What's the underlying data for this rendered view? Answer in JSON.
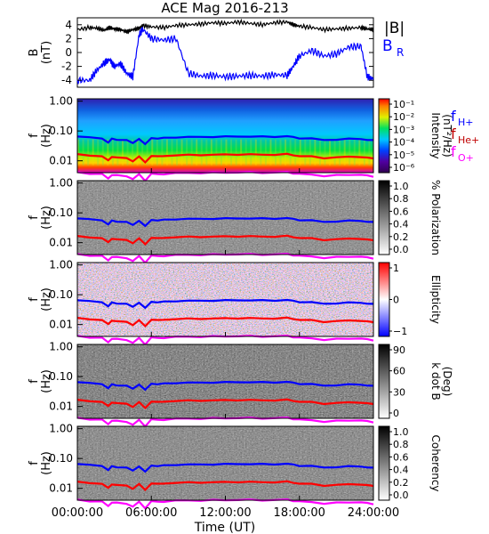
{
  "title": "ACE Mag 2016-213",
  "xlabel": "Time (UT)",
  "time_ticks": [
    "00:00:00",
    "06:00:00",
    "12:00:00",
    "18:00:00",
    "24:00:00"
  ],
  "colors": {
    "black": "#000000",
    "blue": "#0000ff",
    "red": "#ff0000",
    "magenta": "#ff00ff",
    "purple": "#8000a0"
  },
  "chart_data": [
    {
      "type": "line",
      "panel": "B",
      "ylabel": [
        "B",
        "(nT)"
      ],
      "ylim": [
        -5,
        5
      ],
      "yticks": [
        -4,
        -2,
        0,
        2,
        4
      ],
      "legend": {
        "labels": [
          "|B|",
          "B",
          "R"
        ],
        "placement": "right"
      },
      "x_hours": [
        0,
        1,
        1.6,
        2.2,
        2.6,
        3,
        3.5,
        4,
        4.5,
        5,
        5.3,
        6,
        7,
        8,
        9,
        10,
        11,
        12,
        13,
        14,
        15,
        16,
        17,
        17.5,
        18,
        19,
        20,
        21,
        22,
        23,
        23.5,
        24
      ],
      "series": [
        {
          "name": "|B|",
          "color": "#000000",
          "values": [
            3.3,
            3.6,
            3.5,
            3.2,
            3.6,
            3.4,
            3.3,
            3.0,
            3.3,
            3.5,
            3.9,
            3.7,
            3.6,
            3.9,
            4.0,
            4.1,
            4.3,
            4.2,
            4.4,
            4.2,
            4.0,
            4.3,
            4.4,
            4.0,
            3.8,
            3.6,
            3.3,
            3.4,
            3.5,
            3.6,
            3.4,
            3.3
          ]
        },
        {
          "name": "BR",
          "color": "#0000ff",
          "values": [
            -4.0,
            -4.0,
            -2.5,
            -1.5,
            -1.0,
            -2.0,
            -1.6,
            -3.0,
            -3.5,
            2.5,
            3.4,
            2.0,
            1.8,
            2.0,
            -3.0,
            -3.4,
            -3.3,
            -3.5,
            -3.4,
            -3.3,
            -3.4,
            -3.2,
            -3.3,
            -2.0,
            -0.5,
            0.3,
            -0.5,
            -0.2,
            0.8,
            0.9,
            -3.5,
            -3.8
          ]
        }
      ]
    },
    {
      "type": "heatmap",
      "panel": "intensity",
      "ylabel": [
        "f",
        "(Hz)"
      ],
      "yticks": [
        "0.01",
        "0.10",
        "1.00"
      ],
      "ylim": [
        0.004,
        1.2
      ],
      "colorbar": {
        "labels": [
          "10⁻¹",
          "10⁻²",
          "10⁻³",
          "10⁻⁴",
          "10⁻⁵",
          "10⁻⁶"
        ],
        "title": [
          "Intensity",
          "(nT²/Hz)"
        ]
      },
      "legend": {
        "labels": [
          "f",
          "H+",
          "f",
          "He+",
          "f",
          "O+"
        ],
        "placement": "right"
      }
    },
    {
      "type": "heatmap",
      "panel": "polarization",
      "ylabel": [
        "f",
        "(Hz)"
      ],
      "yticks": [
        "0.01",
        "0.10",
        "1.00"
      ],
      "colorbar": {
        "labels": [
          "1.0",
          "0.8",
          "0.6",
          "0.4",
          "0.2",
          "0.0"
        ],
        "title": [
          "% Polarization"
        ]
      }
    },
    {
      "type": "heatmap",
      "panel": "ellipticity",
      "ylabel": [
        "f",
        "(Hz)"
      ],
      "yticks": [
        "0.01",
        "0.10",
        "1.00"
      ],
      "colorbar": {
        "labels": [
          "1",
          "0",
          "−1"
        ],
        "title": [
          "Ellipticity"
        ]
      }
    },
    {
      "type": "heatmap",
      "panel": "kdotb",
      "ylabel": [
        "f",
        "(Hz)"
      ],
      "yticks": [
        "0.01",
        "0.10",
        "1.00"
      ],
      "colorbar": {
        "labels": [
          "90",
          "60",
          "30",
          "0"
        ],
        "title": [
          "k dot B",
          "(Deg)"
        ]
      }
    },
    {
      "type": "heatmap",
      "panel": "coherency",
      "ylabel": [
        "f",
        "(Hz)"
      ],
      "yticks": [
        "0.01",
        "0.10",
        "1.00"
      ],
      "colorbar": {
        "labels": [
          "1.0",
          "0.8",
          "0.6",
          "0.4",
          "0.2",
          "0.0"
        ],
        "title": [
          "Coherency"
        ]
      }
    }
  ],
  "cyclotron_lines": {
    "x_hours": [
      0,
      1,
      2,
      2.5,
      2.8,
      3.2,
      4,
      4.5,
      5,
      5.5,
      6,
      6.5,
      7,
      8,
      9,
      10,
      11,
      12,
      13,
      14,
      15,
      16,
      17,
      17.5,
      18,
      19,
      20,
      21,
      22,
      23,
      23.5,
      24
    ],
    "fHplus_hz": [
      0.065,
      0.06,
      0.058,
      0.04,
      0.055,
      0.052,
      0.048,
      0.04,
      0.055,
      0.035,
      0.06,
      0.055,
      0.058,
      0.062,
      0.062,
      0.063,
      0.064,
      0.064,
      0.066,
      0.065,
      0.064,
      0.065,
      0.066,
      0.062,
      0.058,
      0.055,
      0.05,
      0.052,
      0.054,
      0.055,
      0.05,
      0.048
    ]
  }
}
